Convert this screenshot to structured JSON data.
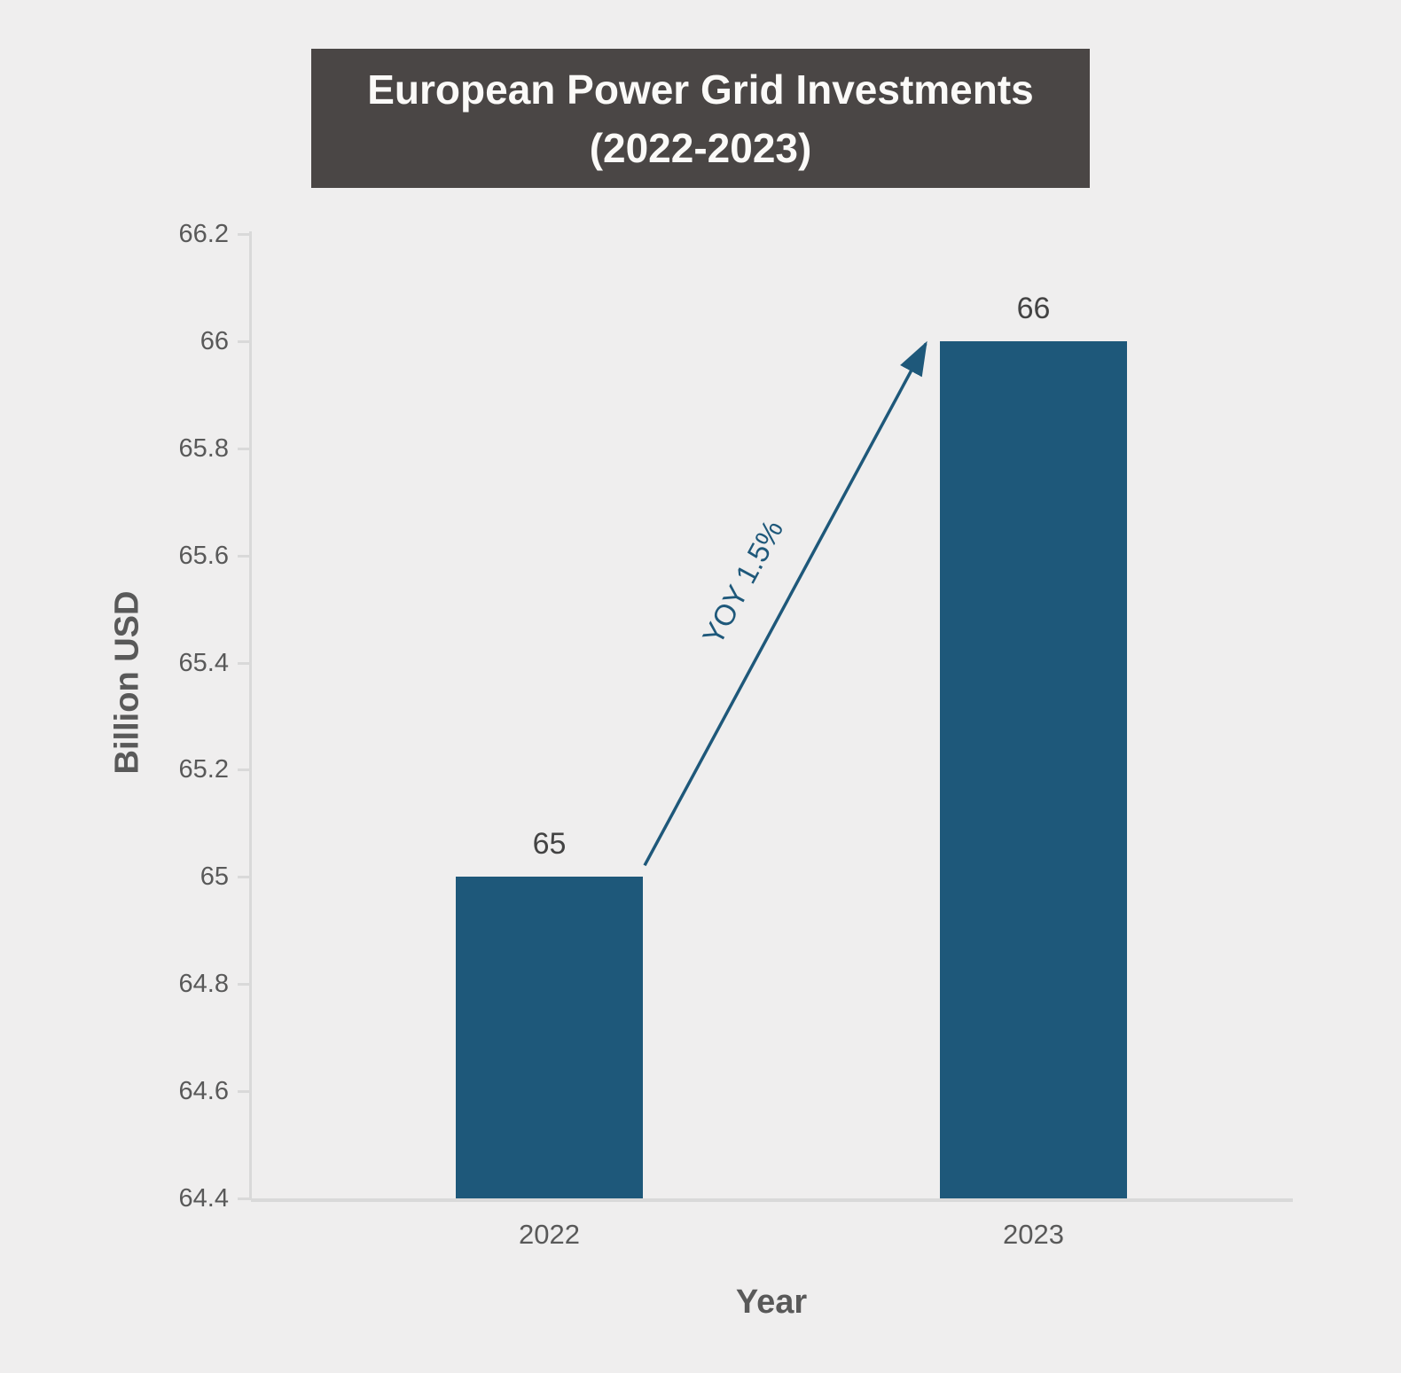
{
  "title": {
    "line1": "European Power Grid Investments",
    "line2": "(2022-2023)"
  },
  "chart_data": {
    "type": "bar",
    "title": "European Power Grid Investments (2022-2023)",
    "categories": [
      "2022",
      "2023"
    ],
    "values": [
      65,
      66
    ],
    "xlabel": "Year",
    "ylabel": "Billion USD",
    "ylim": [
      64.4,
      66.2
    ],
    "ytick_step": 0.2,
    "yticks": [
      "64.4",
      "64.6",
      "64.8",
      "65",
      "65.2",
      "65.4",
      "65.6",
      "65.8",
      "66",
      "66.2"
    ],
    "grid": false,
    "legend": false,
    "annotation": {
      "text": "YOY 1.5%",
      "style": "arrow",
      "from_category": "2022",
      "to_category": "2023"
    }
  },
  "colors": {
    "background": "#EFEEEE",
    "title_box_bg": "#4A4645",
    "title_text": "#FBFAF8",
    "bar_fill": "#1E587A",
    "annotation_accent": "#1E587A",
    "axis_line": "#D9D9D9",
    "tick_label": "#595959",
    "value_label": "#434343"
  }
}
